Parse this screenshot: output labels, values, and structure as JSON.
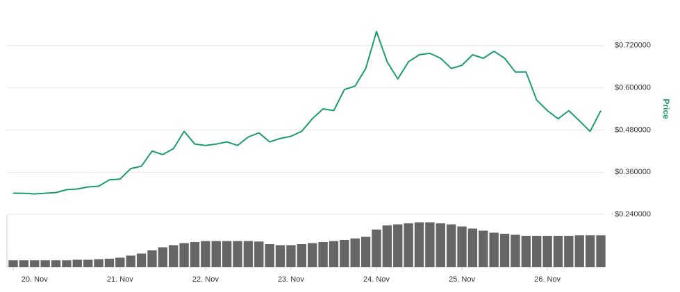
{
  "chart_data": {
    "type": "line",
    "y_label": "Price",
    "categories": [
      "",
      null,
      "20. Nov",
      null,
      null,
      null,
      null,
      null,
      null,
      null,
      "21. Nov",
      null,
      null,
      null,
      null,
      null,
      null,
      null,
      "22. Nov",
      null,
      null,
      null,
      null,
      null,
      null,
      null,
      "23. Nov",
      null,
      null,
      null,
      null,
      null,
      null,
      null,
      "24. Nov",
      null,
      null,
      null,
      null,
      null,
      null,
      null,
      "25. Nov",
      null,
      null,
      null,
      null,
      null,
      null,
      null,
      "26. Nov",
      null,
      null,
      null,
      null,
      null
    ],
    "values": [
      0.3,
      0.3,
      0.298,
      0.3,
      0.302,
      0.31,
      0.312,
      0.318,
      0.32,
      0.338,
      0.34,
      0.37,
      0.377,
      0.42,
      0.41,
      0.427,
      0.476,
      0.44,
      0.436,
      0.44,
      0.446,
      0.436,
      0.46,
      0.472,
      0.446,
      0.456,
      0.462,
      0.476,
      0.512,
      0.54,
      0.535,
      0.595,
      0.605,
      0.655,
      0.76,
      0.674,
      0.625,
      0.674,
      0.694,
      0.698,
      0.684,
      0.655,
      0.664,
      0.694,
      0.684,
      0.704,
      0.684,
      0.645,
      0.645,
      0.565,
      0.535,
      0.512,
      0.535,
      0.506,
      0.476,
      0.535
    ],
    "color": "#1a9b6c",
    "volume": [
      13,
      13,
      13,
      13,
      13,
      13,
      14,
      14,
      15,
      16,
      18,
      22,
      26,
      32,
      38,
      42,
      46,
      48,
      50,
      50,
      50,
      50,
      50,
      49,
      44,
      42,
      42,
      44,
      46,
      48,
      50,
      52,
      55,
      58,
      72,
      80,
      82,
      84,
      86,
      86,
      84,
      82,
      78,
      74,
      70,
      66,
      64,
      62,
      60,
      60,
      60,
      60,
      60,
      61,
      61,
      61
    ],
    "volume_color": "#666666",
    "volume_lim": [
      0,
      100
    ],
    "ylim": [
      0.24,
      0.84
    ],
    "yticks": [
      {
        "value": 0.24,
        "label": "$0.240000"
      },
      {
        "value": 0.36,
        "label": "$0.360000"
      },
      {
        "value": 0.48,
        "label": "$0.480000"
      },
      {
        "value": 0.6,
        "label": "$0.600000"
      },
      {
        "value": 0.72,
        "label": "$0.720000"
      }
    ],
    "grid": true
  }
}
